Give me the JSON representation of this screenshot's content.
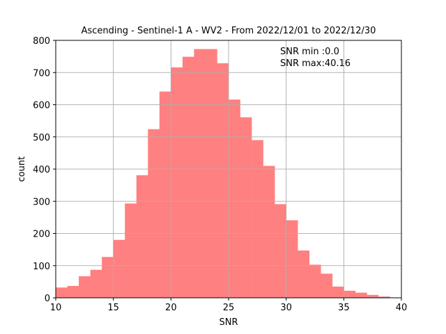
{
  "chart_data": {
    "type": "bar",
    "title": "Ascending - Sentinel-1 A - WV2 - From 2022/12/01 to 2022/12/30",
    "xlabel": "SNR",
    "ylabel": "count",
    "xlim": [
      10,
      40
    ],
    "ylim": [
      0,
      800
    ],
    "xticks": [
      10,
      15,
      20,
      25,
      30,
      35,
      40
    ],
    "yticks": [
      0,
      100,
      200,
      300,
      400,
      500,
      600,
      700,
      800
    ],
    "grid": true,
    "bar_color": "#ff8080",
    "bin_edges": [
      10,
      11,
      12,
      13,
      14,
      15,
      16,
      17,
      18,
      19,
      20,
      21,
      22,
      23,
      24,
      25,
      26,
      27,
      28,
      29,
      30,
      31,
      32,
      33,
      34,
      35,
      36,
      37,
      38,
      39
    ],
    "bin_width": 1,
    "values": [
      32,
      37,
      67,
      87,
      127,
      180,
      293,
      381,
      524,
      641,
      716,
      749,
      773,
      773,
      729,
      616,
      561,
      490,
      410,
      291,
      241,
      147,
      103,
      75,
      35,
      22,
      16,
      9,
      4
    ],
    "annotations": [
      "SNR min :0.0",
      "SNR max:40.16"
    ]
  }
}
